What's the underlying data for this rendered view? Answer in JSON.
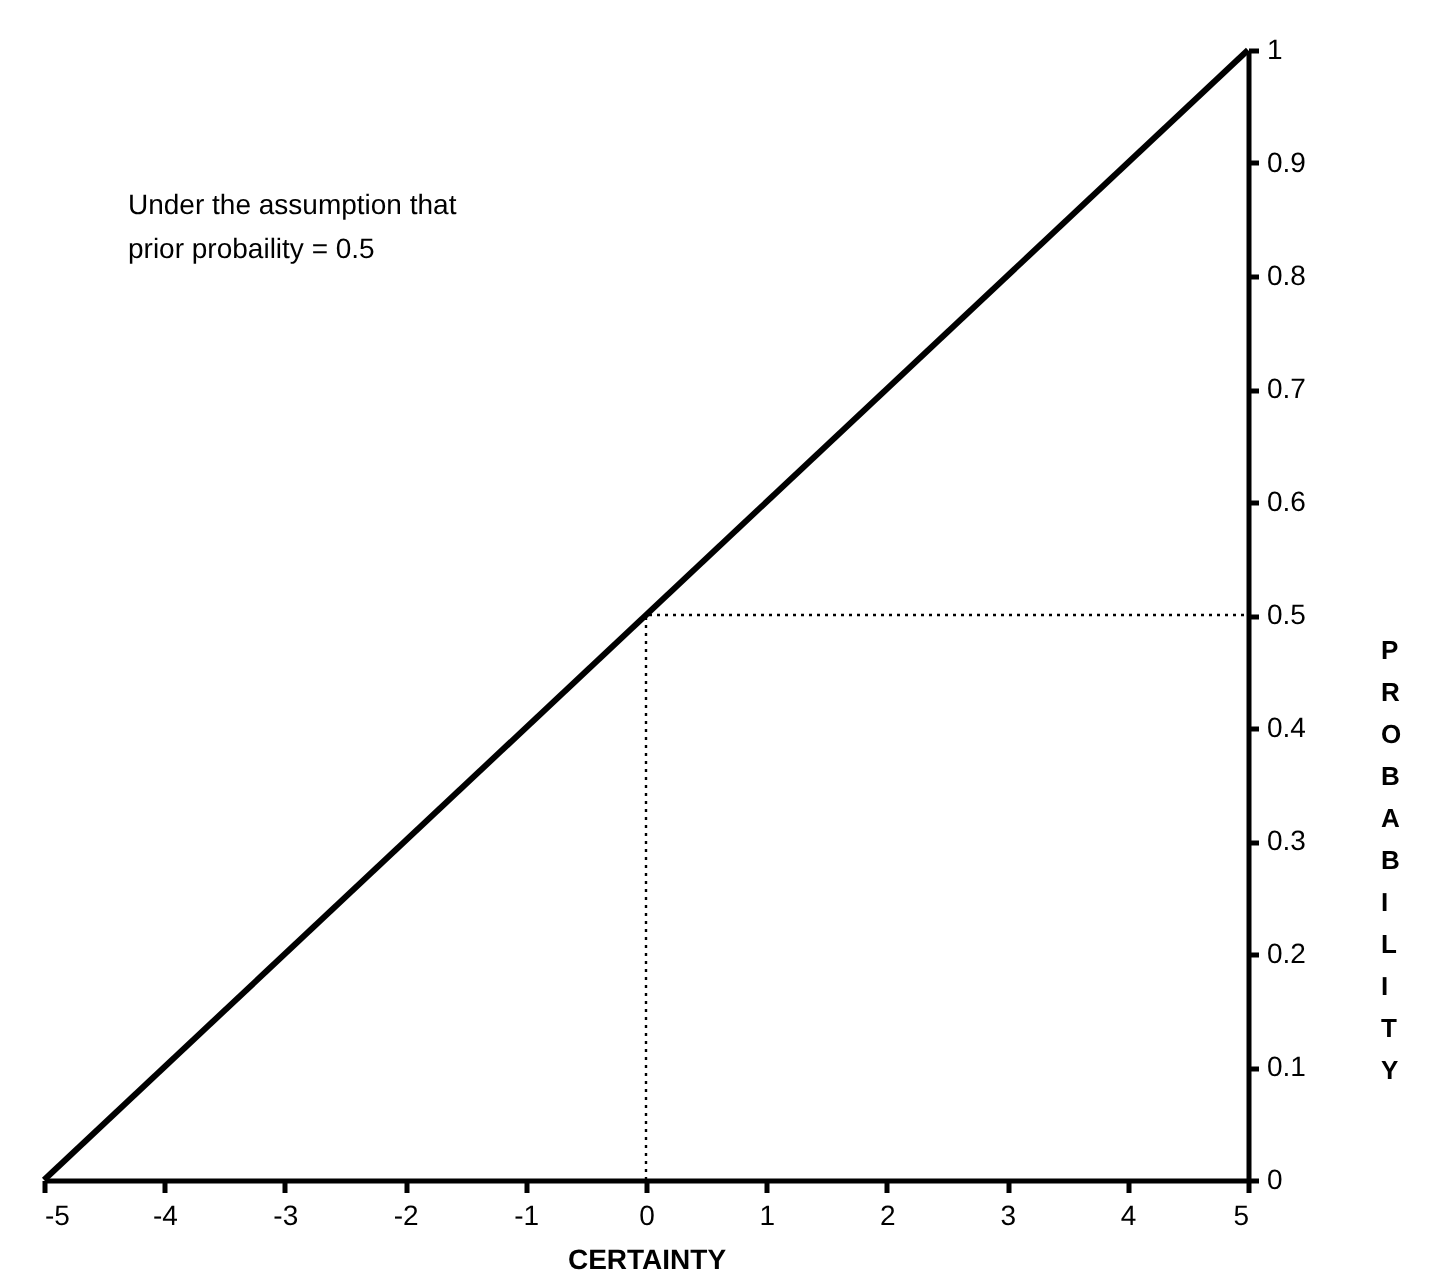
{
  "chart_data": {
    "type": "line",
    "xlabel": "CERTAINTY",
    "ylabel": "PROBABILITY",
    "annotations": [
      "Under the assumption that",
      "prior probaility = 0.5"
    ],
    "xlim": [
      -5,
      5
    ],
    "xticks": [
      -5,
      -4,
      -3,
      -2,
      -1,
      0,
      1,
      2,
      3,
      4,
      5
    ],
    "ylim": [
      0,
      1
    ],
    "yticks": [
      0,
      0.1,
      0.2,
      0.3,
      0.4,
      0.5,
      0.6,
      0.7,
      0.8,
      0.9,
      1
    ],
    "grid": false,
    "marker": "none",
    "series": [
      {
        "x": [
          -5,
          5
        ],
        "values": [
          0,
          1
        ],
        "color": "#000000",
        "line_style": "solid"
      },
      {
        "x": [
          0,
          0,
          5
        ],
        "values": [
          0,
          0.5,
          0.5
        ],
        "color": "#000000",
        "line_style": "dotted"
      }
    ]
  }
}
